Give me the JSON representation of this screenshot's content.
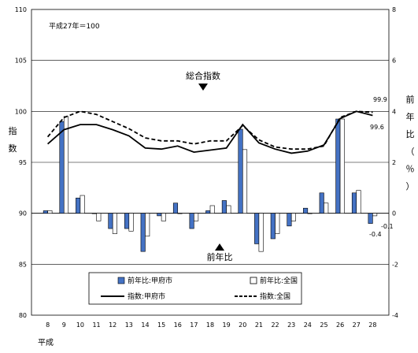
{
  "chart_data": {
    "type": "bar+line",
    "base_note": "平成27年＝100",
    "era_label": "平成",
    "categories": [
      "8",
      "9",
      "10",
      "11",
      "12",
      "13",
      "14",
      "15",
      "16",
      "17",
      "18",
      "19",
      "20",
      "21",
      "22",
      "23",
      "24",
      "25",
      "26",
      "27",
      "28"
    ],
    "left_axis": {
      "label_chars": [
        "指",
        "数"
      ],
      "range": [
        80,
        110
      ],
      "ticks": [
        80,
        85,
        90,
        95,
        100,
        105,
        110
      ]
    },
    "right_axis": {
      "label_chars": [
        "前",
        "年",
        "比",
        "（",
        "％",
        "）"
      ],
      "range": [
        -4,
        8
      ],
      "ticks": [
        -4,
        -2,
        0,
        2,
        4,
        6,
        8
      ]
    },
    "bars": [
      {
        "name": "前年比:甲府市",
        "color": "#4472c4",
        "values": [
          0.1,
          3.6,
          0.6,
          0.0,
          -0.6,
          -0.6,
          -1.5,
          -0.1,
          0.4,
          -0.6,
          0.1,
          0.5,
          3.3,
          -1.2,
          -1.0,
          -0.5,
          0.2,
          0.8,
          3.7,
          0.8,
          -0.4
        ]
      },
      {
        "name": "前年比:全国",
        "color": "#ffffff",
        "values": [
          0.1,
          3.8,
          0.7,
          -0.3,
          -0.8,
          -0.7,
          -0.9,
          -0.3,
          0.0,
          -0.3,
          0.3,
          0.3,
          2.5,
          -1.5,
          -0.8,
          -0.3,
          0.0,
          0.4,
          3.7,
          0.9,
          -0.1
        ]
      }
    ],
    "lines": [
      {
        "name": "指数:甲府市",
        "style": "solid",
        "values": [
          96.8,
          98.2,
          98.7,
          98.7,
          98.2,
          97.6,
          96.4,
          96.3,
          96.6,
          96.0,
          96.2,
          96.4,
          98.7,
          96.9,
          96.3,
          95.9,
          96.1,
          96.7,
          99.3,
          100.0,
          99.6
        ]
      },
      {
        "name": "指数:全国",
        "style": "dashed",
        "values": [
          97.5,
          99.4,
          100.0,
          99.7,
          99.0,
          98.3,
          97.4,
          97.1,
          97.1,
          96.8,
          97.1,
          97.1,
          98.6,
          97.2,
          96.5,
          96.3,
          96.3,
          96.6,
          99.4,
          100.0,
          99.9
        ]
      }
    ],
    "annotations": {
      "sogo": "総合指数",
      "zennenhi": "前年比",
      "fuchu_27_28": [
        "99.6",
        "-0.4"
      ],
      "zenkoku_27_28": [
        "99.9",
        "-0.1"
      ]
    }
  }
}
